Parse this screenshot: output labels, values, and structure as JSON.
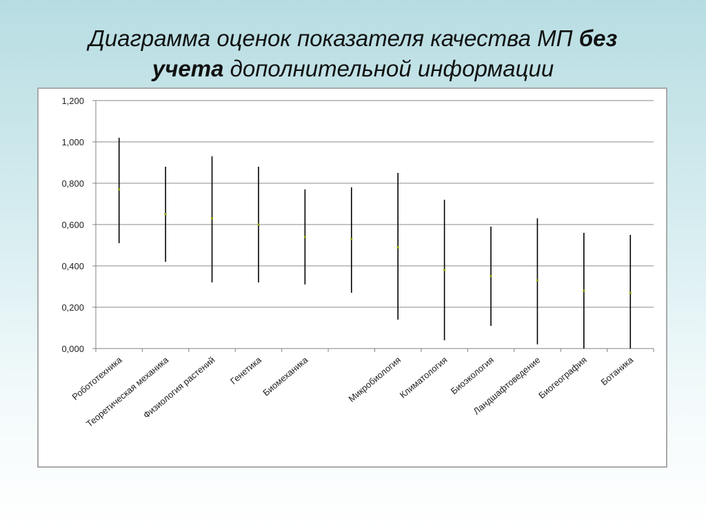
{
  "slide": {
    "title_part1": "Диаграмма оценок показателя качества МП ",
    "title_bold1": "без",
    "title_bold2": "учета",
    "title_part2": " дополнительной информации"
  },
  "colors": {
    "whisker": "#000000",
    "marker": "#9aa70e",
    "grid": "#888888",
    "axis": "#808080",
    "background_top": "#b7dde2"
  },
  "chart_data": {
    "type": "scatter",
    "subtype": "high-low-mean error bars",
    "ylim": [
      0,
      1.2
    ],
    "yticks": [
      "0,000",
      "0,200",
      "0,400",
      "0,600",
      "0,800",
      "1,000",
      "1,200"
    ],
    "grid": true,
    "categories": [
      "Робототехника",
      "Теоретическая механика",
      "Физиология растений",
      "Генетика",
      "Биомеханика",
      "",
      "Микробиология",
      "Климатология",
      "Биоэкология",
      "Ландшафтоведение",
      "Биогеография",
      "Ботаника"
    ],
    "series": [
      {
        "values_high": [
          1.02,
          0.88,
          0.93,
          0.88,
          0.77,
          0.78,
          0.85,
          0.72,
          0.59,
          0.63,
          0.56,
          0.55
        ]
      },
      {
        "values_low": [
          0.51,
          0.42,
          0.32,
          0.32,
          0.31,
          0.27,
          0.14,
          0.04,
          0.11,
          0.02,
          0.0,
          0.0
        ]
      },
      {
        "values_mean": [
          0.77,
          0.65,
          0.63,
          0.6,
          0.54,
          0.53,
          0.49,
          0.38,
          0.35,
          0.33,
          0.28,
          0.27
        ]
      }
    ]
  }
}
